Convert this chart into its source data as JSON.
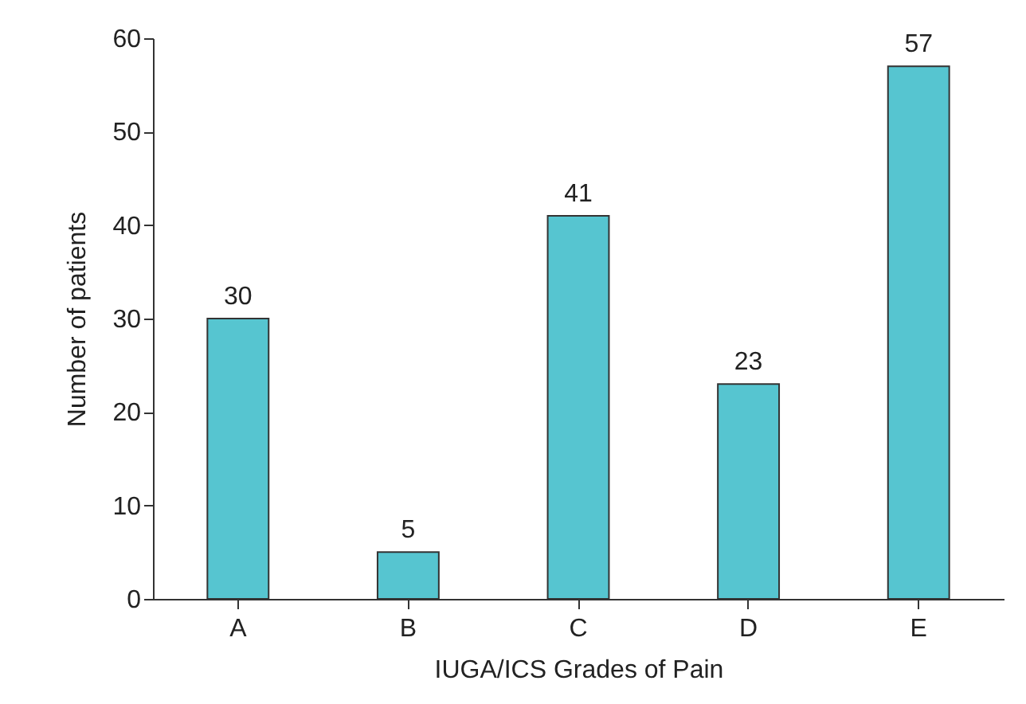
{
  "chart_data": {
    "type": "bar",
    "xlabel": "IUGA/ICS Grades of Pain",
    "ylabel": "Number of patients",
    "categories": [
      "A",
      "B",
      "C",
      "D",
      "E"
    ],
    "values": [
      30,
      5,
      41,
      23,
      57
    ],
    "color": "#56c5d0",
    "ylim": [
      0,
      60
    ],
    "yticks": [
      0,
      10,
      20,
      30,
      40,
      50,
      60
    ],
    "grid": false,
    "data_labels": true
  }
}
